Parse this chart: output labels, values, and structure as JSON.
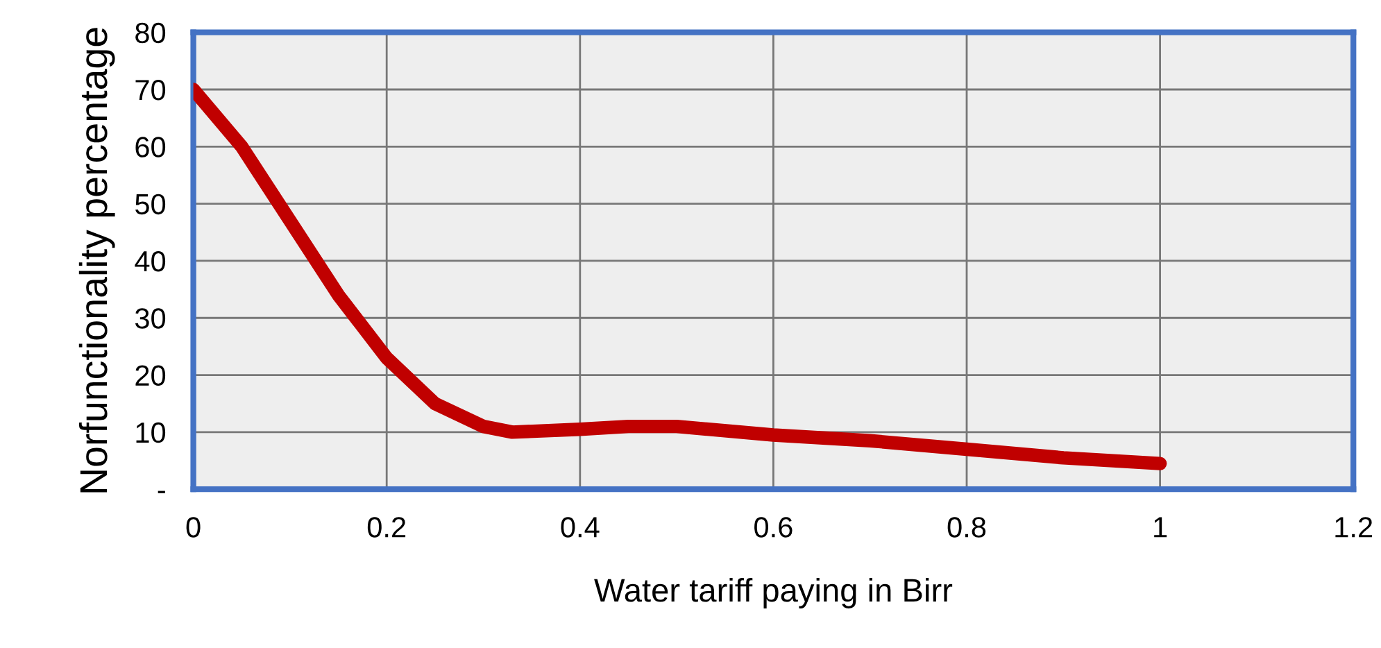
{
  "chart_data": {
    "type": "line",
    "xlabel": "Water tariff paying in Birr",
    "ylabel": "Norfunctionality percentage",
    "x": [
      0,
      0.05,
      0.1,
      0.15,
      0.2,
      0.25,
      0.3,
      0.33,
      0.4,
      0.45,
      0.5,
      0.6,
      0.7,
      0.8,
      0.9,
      1.0
    ],
    "series": [
      {
        "color": "#c00000",
        "values": [
          70,
          60,
          47,
          34,
          23,
          15,
          11,
          10,
          10.5,
          11,
          11,
          9.5,
          8.5,
          7,
          5.5,
          4.5
        ]
      }
    ],
    "xlim": [
      0,
      1.2
    ],
    "xticks": [
      0,
      0.2,
      0.4,
      0.6,
      0.8,
      1,
      1.2
    ],
    "ylim": [
      0,
      80
    ],
    "yticks": [
      {
        "value": 0,
        "label": "-"
      },
      10,
      20,
      30,
      40,
      50,
      60,
      70,
      80
    ],
    "grid": true,
    "marker": "none",
    "line_style": "solid"
  }
}
